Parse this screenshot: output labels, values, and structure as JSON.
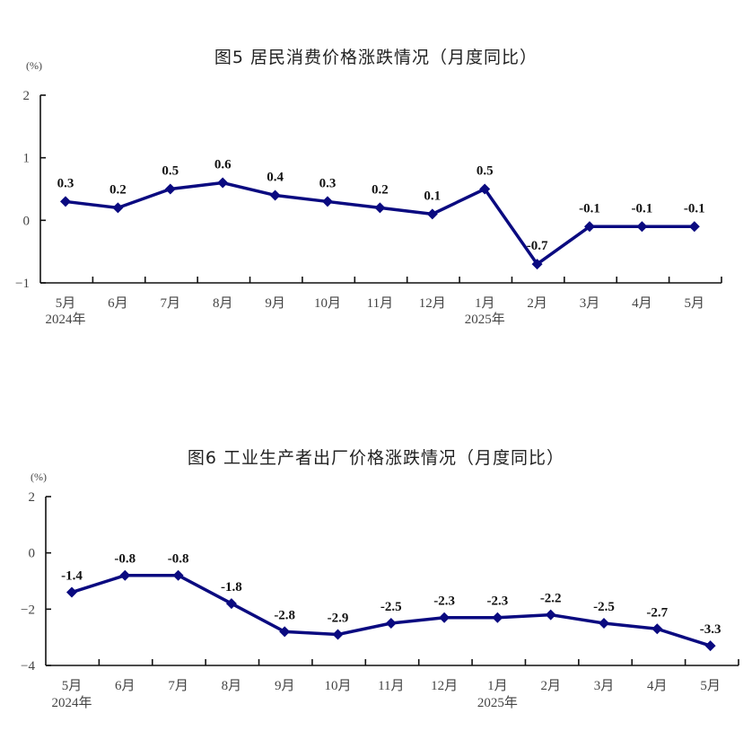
{
  "chart_data": [
    {
      "type": "line",
      "title": "图5   居民消费价格涨跌情况（月度同比）",
      "unit": "(%)",
      "xlabel": "",
      "ylabel": "(%)",
      "categories": [
        "5月",
        "6月",
        "7月",
        "8月",
        "9月",
        "10月",
        "11月",
        "12月",
        "1月",
        "2月",
        "3月",
        "4月",
        "5月"
      ],
      "year_labels": [
        {
          "index": 0,
          "label": "2024年"
        },
        {
          "index": 8,
          "label": "2025年"
        }
      ],
      "values": [
        0.3,
        0.2,
        0.5,
        0.6,
        0.4,
        0.3,
        0.2,
        0.1,
        0.5,
        -0.7,
        -0.1,
        -0.1,
        -0.1
      ],
      "data_labels": [
        "0.3",
        "0.2",
        "0.5",
        "0.6",
        "0.4",
        "0.3",
        "0.2",
        "0.1",
        "0.5",
        "-0.7",
        "-0.1",
        "-0.1",
        "-0.1"
      ],
      "yticks": [
        2,
        1,
        0,
        -1
      ],
      "ytick_labels": [
        "2",
        "1",
        "0",
        "−1"
      ],
      "ylim": [
        -1,
        2
      ],
      "grid": false,
      "legend": null,
      "color": "#0a0a80",
      "marker": "diamond"
    },
    {
      "type": "line",
      "title": "图6   工业生产者出厂价格涨跌情况（月度同比）",
      "unit": "(%)",
      "xlabel": "",
      "ylabel": "(%)",
      "categories": [
        "5月",
        "6月",
        "7月",
        "8月",
        "9月",
        "10月",
        "11月",
        "12月",
        "1月",
        "2月",
        "3月",
        "4月",
        "5月"
      ],
      "year_labels": [
        {
          "index": 0,
          "label": "2024年"
        },
        {
          "index": 8,
          "label": "2025年"
        }
      ],
      "values": [
        -1.4,
        -0.8,
        -0.8,
        -1.8,
        -2.8,
        -2.9,
        -2.5,
        -2.3,
        -2.3,
        -2.2,
        -2.5,
        -2.7,
        -3.3
      ],
      "data_labels": [
        "-1.4",
        "-0.8",
        "-0.8",
        "-1.8",
        "-2.8",
        "-2.9",
        "-2.5",
        "-2.3",
        "-2.3",
        "-2.2",
        "-2.5",
        "-2.7",
        "-3.3"
      ],
      "yticks": [
        2,
        0,
        -2,
        -4
      ],
      "ytick_labels": [
        "2",
        "0",
        "−2",
        "−4"
      ],
      "ylim": [
        -4,
        2
      ],
      "grid": false,
      "legend": null,
      "color": "#0a0a80",
      "marker": "diamond"
    }
  ]
}
